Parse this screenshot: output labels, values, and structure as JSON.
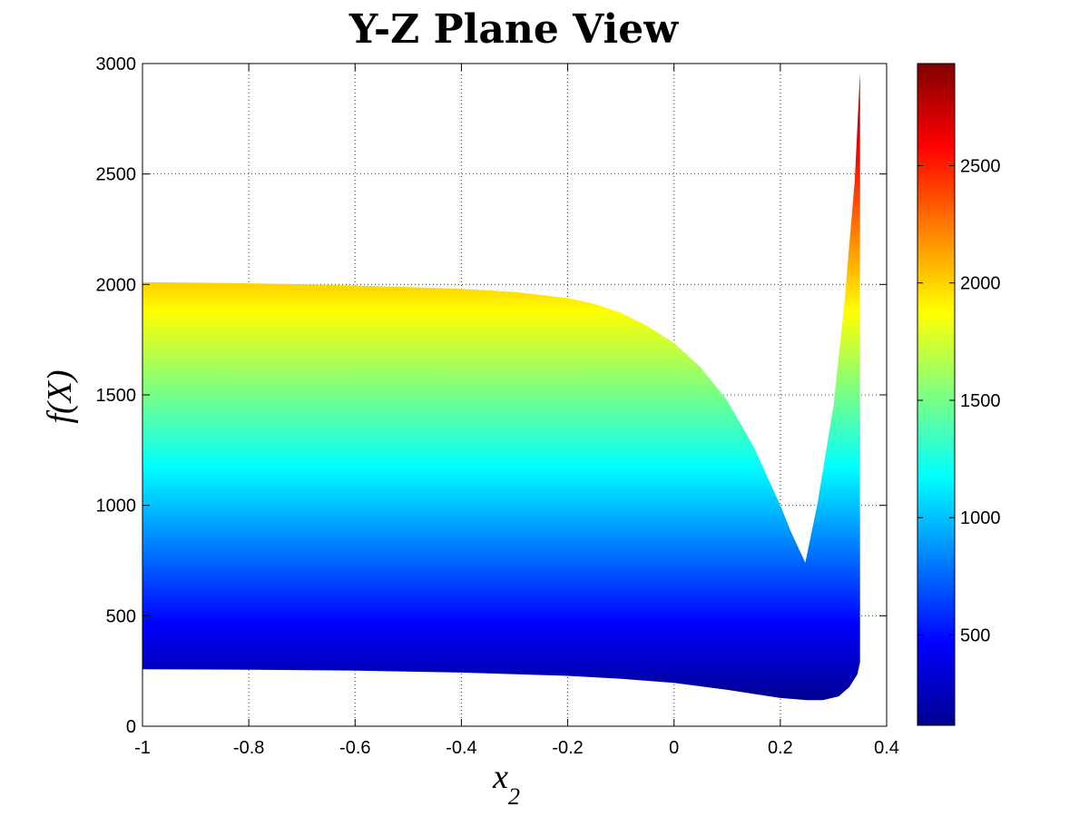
{
  "chart_data": {
    "type": "area",
    "title": "Y-Z Plane View",
    "xlabel": "x",
    "xlabel_subscript": "2",
    "ylabel": "f(X)",
    "xlim": [
      -1,
      0.4
    ],
    "ylim": [
      0,
      3000
    ],
    "xticks": [
      -1,
      -0.8,
      -0.6,
      -0.4,
      -0.2,
      0,
      0.2,
      0.4
    ],
    "xtick_labels": [
      "-1",
      "-0.8",
      "-0.6",
      "-0.4",
      "-0.2",
      "0",
      "0.2",
      "0.4"
    ],
    "yticks": [
      0,
      500,
      1000,
      1500,
      2000,
      2500,
      3000
    ],
    "ytick_labels": [
      "0",
      "500",
      "1000",
      "1500",
      "2000",
      "2500",
      "3000"
    ],
    "grid": true,
    "colormap": "jet",
    "colorbar": {
      "range": [
        115,
        2935
      ],
      "ticks": [
        500,
        1000,
        1500,
        2000,
        2500
      ],
      "tick_labels": [
        "500",
        "1000",
        "1500",
        "2000",
        "2500"
      ]
    },
    "series": [
      {
        "role": "upper envelope",
        "x": [
          -1,
          -0.9,
          -0.8,
          -0.7,
          -0.6,
          -0.5,
          -0.4,
          -0.3,
          -0.2,
          -0.15,
          -0.1,
          -0.05,
          0,
          0.05,
          0.1,
          0.15,
          0.2,
          0.22,
          0.247,
          0.27,
          0.3,
          0.32,
          0.34,
          0.35
        ],
        "y": [
          2010,
          2008,
          2005,
          2001,
          1995,
          1988,
          1980,
          1966,
          1938,
          1912,
          1872,
          1812,
          1735,
          1625,
          1475,
          1265,
          1000,
          880,
          740,
          1010,
          1450,
          1900,
          2470,
          2960
        ]
      },
      {
        "role": "lower envelope",
        "x": [
          -1,
          -0.8,
          -0.6,
          -0.4,
          -0.2,
          -0.1,
          0,
          0.1,
          0.2,
          0.25,
          0.28,
          0.31,
          0.33,
          0.345,
          0.35
        ],
        "y": [
          258,
          256,
          252,
          243,
          228,
          215,
          196,
          165,
          128,
          118,
          118,
          135,
          178,
          235,
          290
        ]
      }
    ]
  }
}
